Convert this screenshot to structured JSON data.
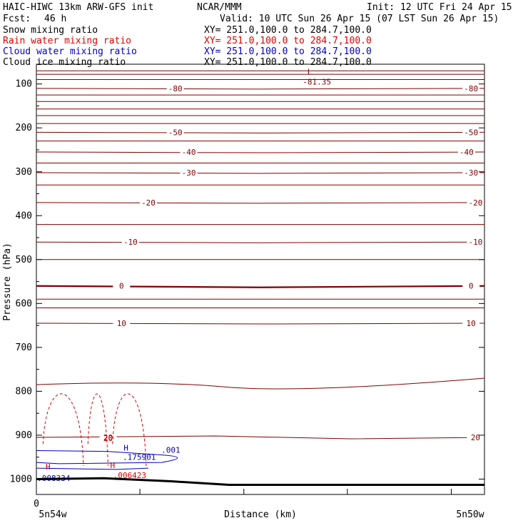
{
  "header": {
    "title_left": "HAIC-HIWC 13km ARW-GFS init",
    "title_center": "NCAR/MMM",
    "init": "Init: 12 UTC Fri 24 Apr 15",
    "fcst_label": "Fcst:",
    "fcst_value": "46 h",
    "valid": "Valid: 10 UTC Sun 26 Apr 15 (07 LST Sun 26 Apr 15)"
  },
  "fields": [
    {
      "name": "Snow mixing ratio",
      "xy": "XY= 251.0,100.0 to 284.7,100.0",
      "color": "#000000"
    },
    {
      "name": "Rain water mixing ratio",
      "xy": "XY= 251.0,100.0 to 284.7,100.0",
      "color": "#e00000"
    },
    {
      "name": "Cloud water mixing ratio",
      "xy": "XY= 251.0,100.0 to 284.7,100.0",
      "color": "#0000c0"
    },
    {
      "name": "Cloud ice mixing ratio",
      "xy": "XY= 251.0,100.0 to 284.7,100.0",
      "color": "#000000"
    }
  ],
  "chart_data": {
    "type": "line",
    "ylabel": "Pressure (hPa)",
    "xlabel": "Distance (km)",
    "x_origin_label": "0",
    "x_left_label": "5n54w",
    "x_right_label": "5n50w",
    "yticks": [
      100,
      200,
      300,
      400,
      500,
      600,
      700,
      800,
      900,
      1000
    ],
    "yrange": [
      55,
      1035
    ],
    "x_range": [
      0,
      100
    ],
    "x_minor_ticks": [
      0,
      23.1,
      46.3,
      69.4,
      92.6
    ],
    "temperature_color": "#800000",
    "temperature_isotherms": [
      {
        "label": "-80",
        "pressure": 110,
        "label_positions": [
          31,
          97
        ]
      },
      {
        "label": "-50",
        "pressure": 210,
        "label_positions": [
          31,
          97
        ]
      },
      {
        "label": "-40",
        "pressure": 255,
        "label_positions": [
          34,
          96
        ]
      },
      {
        "label": "-30",
        "pressure": 302,
        "label_positions": [
          34,
          97
        ]
      },
      {
        "label": "-20",
        "pressure": 370,
        "label_positions": [
          25,
          98
        ]
      },
      {
        "label": "-10",
        "pressure": 460,
        "label_positions": [
          21,
          98
        ]
      },
      {
        "label": "0",
        "pressure": 560,
        "label_positions": [
          19,
          97
        ],
        "bold": true
      },
      {
        "label": "10",
        "pressure": 645,
        "label_positions": [
          19,
          97
        ]
      },
      {
        "label": "20",
        "pressure": 905,
        "label_positions": [
          16,
          98
        ]
      }
    ],
    "low_marker": {
      "label": "L",
      "value": "-81.35",
      "x": 61,
      "pressure": 72
    },
    "cloud_water_high": {
      "label": "H",
      "value": ".175901",
      "x": 18,
      "pressure": 950
    },
    "cloud_water_contour_label": ".001",
    "rain_high": {
      "label": "H",
      "value": ".006423",
      "x": 17,
      "pressure": 975
    },
    "rain_contour_label": "20",
    "snow_high": {
      "label": "H",
      "value": ".008334",
      "x": 1,
      "pressure": 985
    }
  }
}
